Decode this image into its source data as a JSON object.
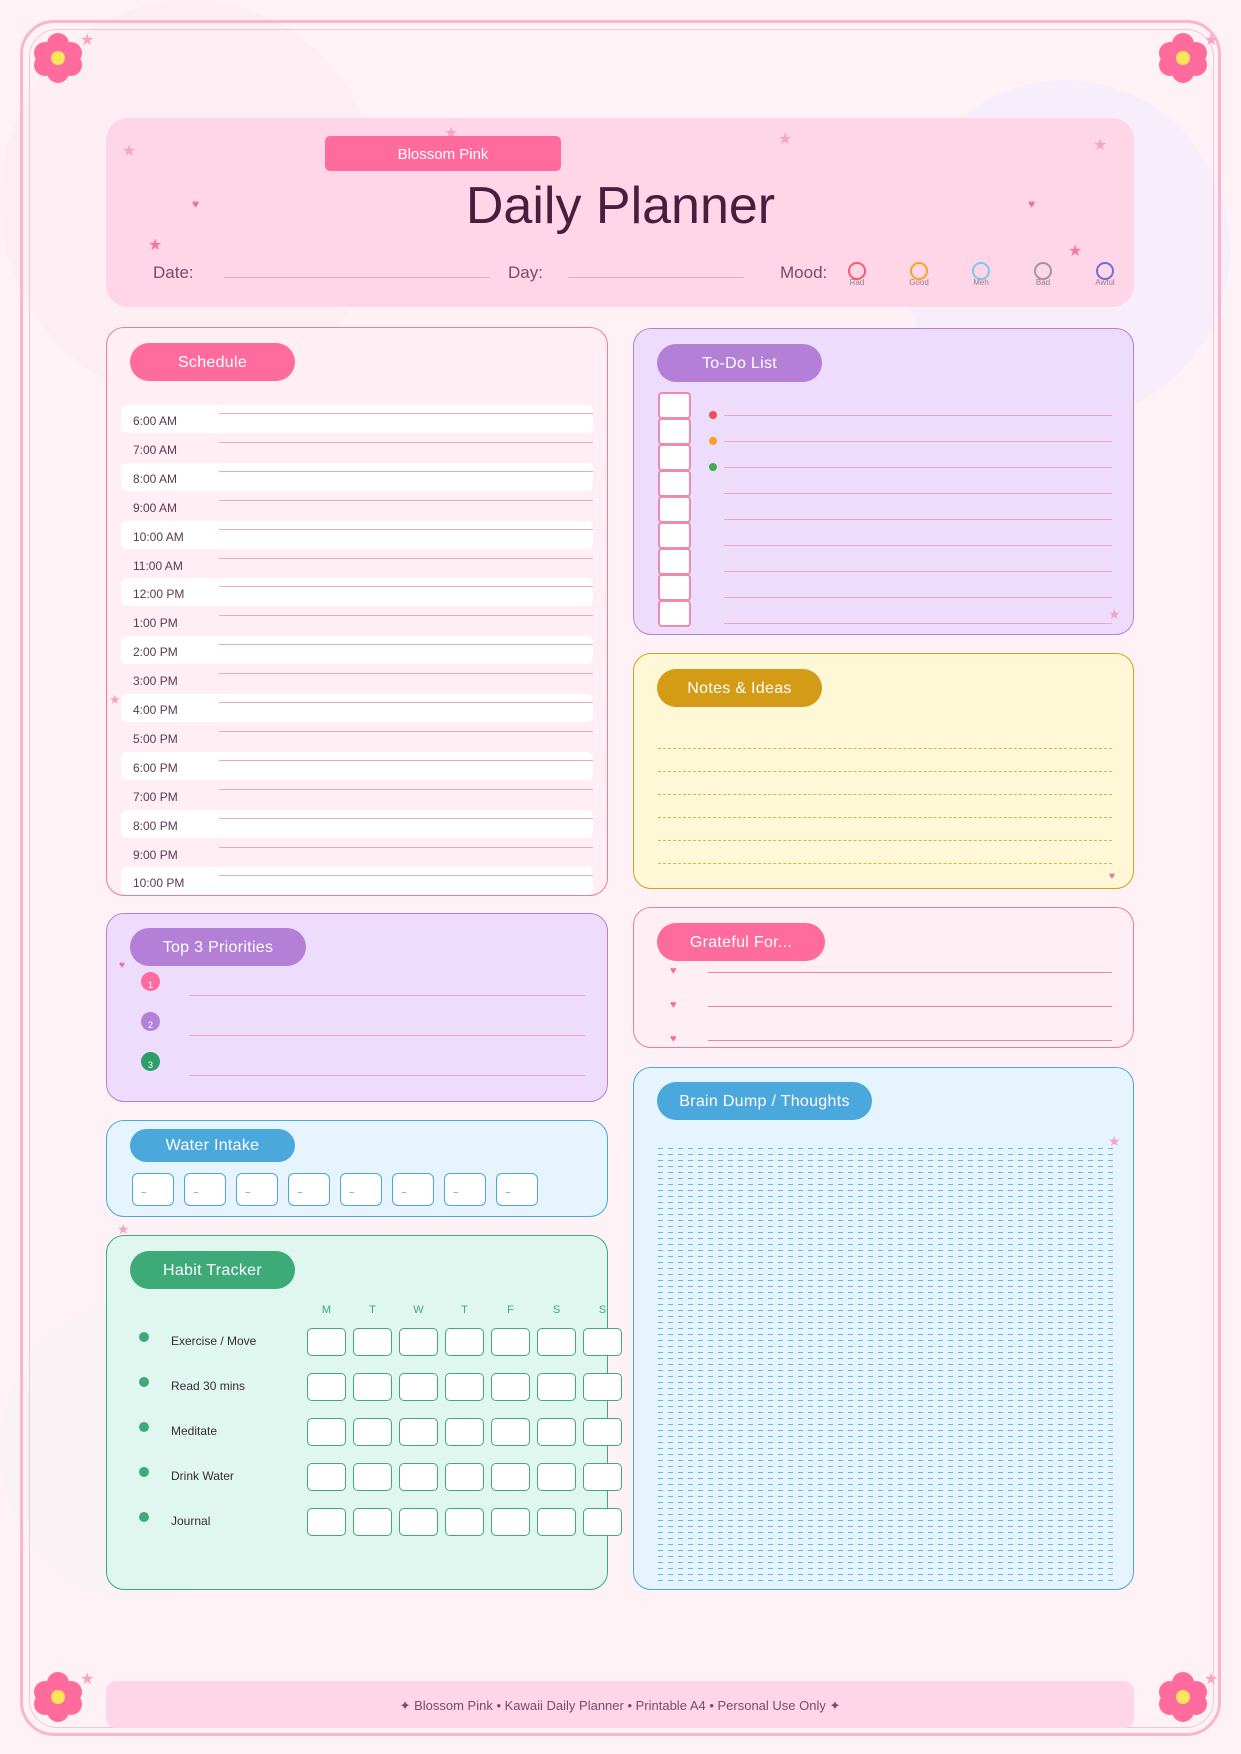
{
  "theme_badge": "Blossom Pink",
  "title": "Daily Planner",
  "date_label": "Date:",
  "day_label": "Day:",
  "mood_label": "Mood:",
  "moods": [
    {
      "label": "Rad",
      "color": "#f25c6e"
    },
    {
      "label": "Good",
      "color": "#f5a623"
    },
    {
      "label": "Meh",
      "color": "#7fc8e8"
    },
    {
      "label": "Bad",
      "color": "#9a9a9a"
    },
    {
      "label": "Awful",
      "color": "#6b6be8"
    }
  ],
  "schedule": {
    "title": "Schedule",
    "times": [
      "6:00 AM",
      "7:00 AM",
      "8:00 AM",
      "9:00 AM",
      "10:00 AM",
      "11:00 AM",
      "12:00 PM",
      "1:00 PM",
      "2:00 PM",
      "3:00 PM",
      "4:00 PM",
      "5:00 PM",
      "6:00 PM",
      "7:00 PM",
      "8:00 PM",
      "9:00 PM",
      "10:00 PM"
    ]
  },
  "todo": {
    "title": "To-Do List",
    "dot_colors": [
      "#f0504a",
      "#f5a020",
      "#3fae4a"
    ]
  },
  "notes": {
    "title": "Notes & Ideas"
  },
  "priorities": {
    "title": "Top 3 Priorities",
    "items": [
      {
        "num": "1",
        "color": "#ff6b9d"
      },
      {
        "num": "2",
        "color": "#b47fd6"
      },
      {
        "num": "3",
        "color": "#2e9e68"
      }
    ]
  },
  "grateful": {
    "title": "Grateful For..."
  },
  "water": {
    "title": "Water Intake",
    "glass_glyph": "~",
    "glasses": 8
  },
  "brain_dump": {
    "title": "Brain Dump / Thoughts"
  },
  "habits": {
    "title": "Habit Tracker",
    "days": [
      "M",
      "T",
      "W",
      "T",
      "F",
      "S",
      "S"
    ],
    "items": [
      "Exercise / Move",
      "Read 30 mins",
      "Meditate",
      "Drink Water",
      "Journal"
    ]
  },
  "footer": "✦ Blossom Pink  •  Kawaii Daily Planner  •  Printable A4  •  Personal Use Only  ✦",
  "colors": {
    "pink": "#ff6b9d",
    "purple": "#b47fd6",
    "gold": "#d4a017",
    "blue": "#4aa8dc",
    "green": "#3daa78"
  }
}
